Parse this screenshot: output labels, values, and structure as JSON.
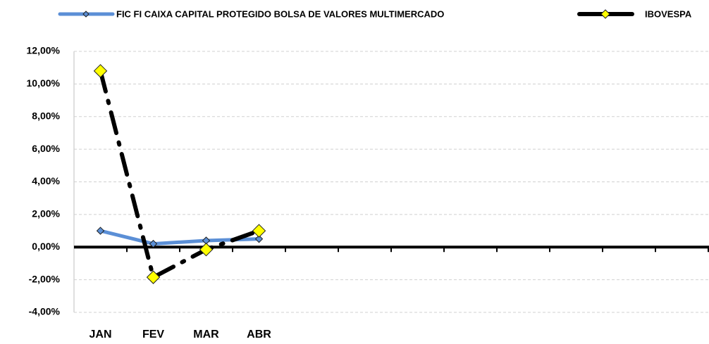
{
  "chart_data": {
    "type": "line",
    "categories": [
      "JAN",
      "FEV",
      "MAR",
      "ABR",
      null,
      null,
      null,
      null,
      null,
      null,
      null,
      null
    ],
    "series": [
      {
        "name": "FIC FI CAIXA CAPITAL PROTEGIDO BOLSA DE VALORES MULTIMERCADO",
        "color": "#5b8fd6",
        "marker_color": "#5b8fd6",
        "values": [
          1.0,
          0.2,
          0.4,
          0.5,
          null,
          null,
          null,
          null,
          null,
          null,
          null,
          null
        ]
      },
      {
        "name": "IBOVESPA",
        "color": "#000000",
        "marker_color": "#ffff00",
        "values": [
          10.8,
          -1.85,
          -0.15,
          1.0,
          null,
          null,
          null,
          null,
          null,
          null,
          null,
          null
        ]
      }
    ],
    "ylim": [
      -4,
      12
    ],
    "yticks": [
      {
        "value": -4,
        "label": "-4,00%"
      },
      {
        "value": -2,
        "label": "-2,00%"
      },
      {
        "value": 0,
        "label": "0,00%"
      },
      {
        "value": 2,
        "label": "2,00%"
      },
      {
        "value": 4,
        "label": "4,00%"
      },
      {
        "value": 6,
        "label": "6,00%"
      },
      {
        "value": 8,
        "label": "8,00%"
      },
      {
        "value": 10,
        "label": "10,00%"
      },
      {
        "value": 12,
        "label": "12,00%"
      }
    ],
    "grid": true,
    "legend": "top"
  }
}
